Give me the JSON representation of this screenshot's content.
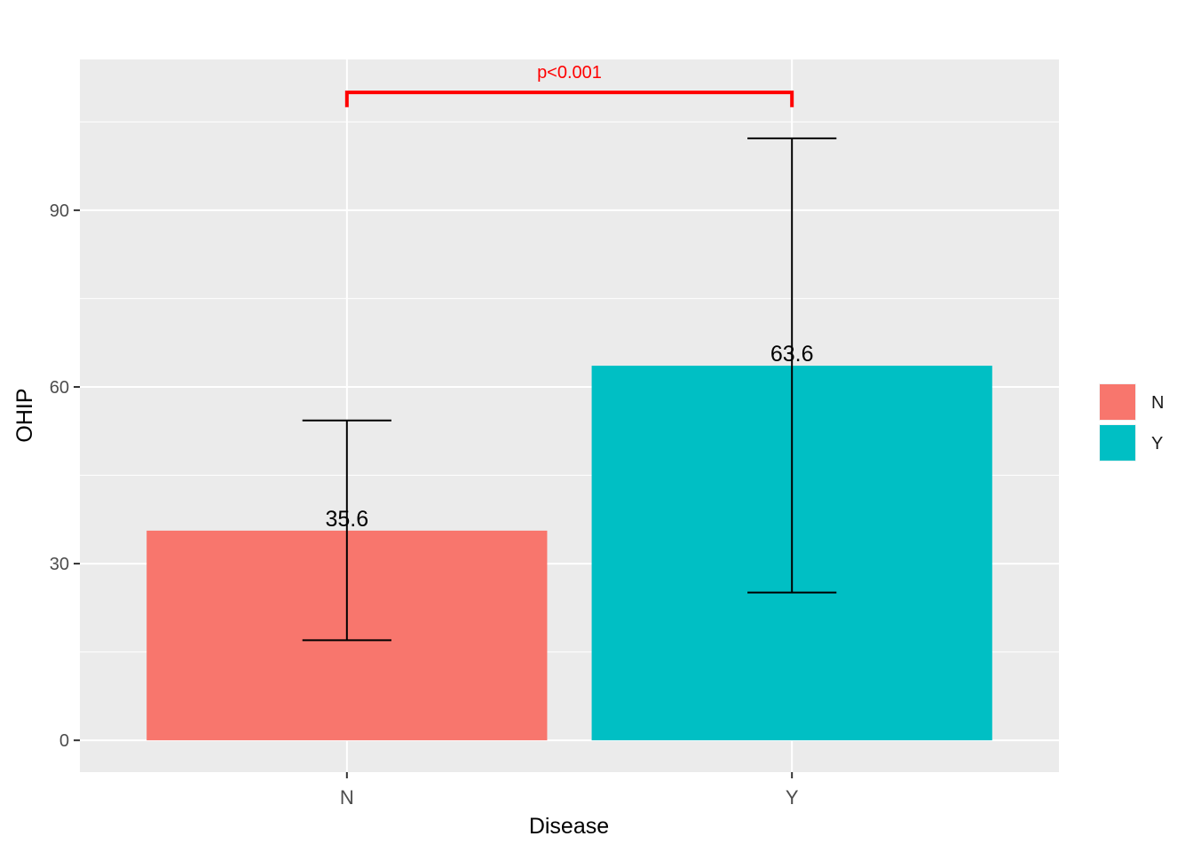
{
  "chart_data": {
    "type": "bar",
    "title": "",
    "xlabel": "Disease",
    "ylabel": "OHIP",
    "categories": [
      "N",
      "Y"
    ],
    "values": [
      35.6,
      63.6
    ],
    "value_labels": [
      "35.6",
      "63.6"
    ],
    "error_bars": [
      {
        "category": "N",
        "low": 17.0,
        "high": 54.3
      },
      {
        "category": "Y",
        "low": 25.1,
        "high": 102.2
      }
    ],
    "ylim": [
      -5.4,
      115.6
    ],
    "yticks": [
      0,
      30,
      60,
      90
    ],
    "ytick_labels": [
      "0",
      "30",
      "60",
      "90"
    ],
    "grid": true,
    "legend": {
      "position": "right",
      "entries": [
        {
          "label": "N",
          "color": "#F8766D"
        },
        {
          "label": "Y",
          "color": "#00BFC4"
        }
      ]
    },
    "significance": {
      "label": "p<0.001",
      "from": "N",
      "to": "Y",
      "y": 110,
      "tip_y": 107.5,
      "color": "#FF0000"
    },
    "colors": {
      "panel_background": "#EBEBEB",
      "grid": "#FFFFFF",
      "bars": [
        "#F8766D",
        "#00BFC4"
      ]
    }
  }
}
